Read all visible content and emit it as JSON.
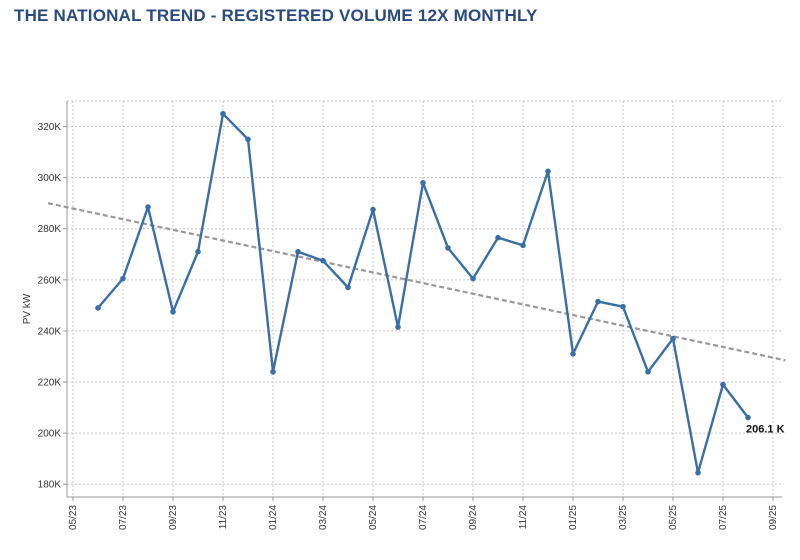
{
  "header": {
    "title": "THE NATIONAL TREND - REGISTERED VOLUME 12X MONTHLY"
  },
  "colors": {
    "series": "#3a6fa5",
    "trend": "#999999",
    "grid": "#c8c8c8",
    "title": "#2b4a7e"
  },
  "chart_data": {
    "type": "line",
    "title": "THE NATIONAL TREND - REGISTERED VOLUME 12X MONTHLY",
    "xlabel": "",
    "ylabel": "PV kW",
    "ylim": [
      175000,
      330000
    ],
    "xlim": [
      0,
      28
    ],
    "grid": true,
    "x_ticks": [
      {
        "x": 0,
        "label": "05/23"
      },
      {
        "x": 2,
        "label": "07/23"
      },
      {
        "x": 4,
        "label": "09/23"
      },
      {
        "x": 6,
        "label": "11/23"
      },
      {
        "x": 8,
        "label": "01/24"
      },
      {
        "x": 10,
        "label": "03/24"
      },
      {
        "x": 12,
        "label": "05/24"
      },
      {
        "x": 14,
        "label": "07/24"
      },
      {
        "x": 16,
        "label": "09/24"
      },
      {
        "x": 18,
        "label": "11/24"
      },
      {
        "x": 20,
        "label": "01/25"
      },
      {
        "x": 22,
        "label": "03/25"
      },
      {
        "x": 24,
        "label": "05/25"
      },
      {
        "x": 26,
        "label": "07/25"
      },
      {
        "x": 28,
        "label": "09/25"
      }
    ],
    "y_ticks": [
      {
        "y": 180000,
        "label": "180K"
      },
      {
        "y": 200000,
        "label": "200K"
      },
      {
        "y": 220000,
        "label": "220K"
      },
      {
        "y": 240000,
        "label": "240K"
      },
      {
        "y": 260000,
        "label": "260K"
      },
      {
        "y": 280000,
        "label": "280K"
      },
      {
        "y": 300000,
        "label": "300K"
      },
      {
        "y": 320000,
        "label": "320K"
      }
    ],
    "series": [
      {
        "name": "PV kW",
        "x": [
          1,
          2,
          3,
          4,
          5,
          6,
          7,
          8,
          9,
          10,
          11,
          12,
          13,
          14,
          15,
          16,
          17,
          18,
          19,
          20,
          21,
          22,
          23,
          24,
          25,
          26,
          27
        ],
        "values": [
          249000,
          260500,
          288500,
          247500,
          271000,
          325000,
          315000,
          224000,
          271000,
          267500,
          257000,
          287500,
          241500,
          298000,
          272500,
          260500,
          276500,
          273500,
          302500,
          231000,
          251500,
          249500,
          224000,
          237000,
          184500,
          219000,
          206100
        ]
      }
    ],
    "trendline": {
      "name": "Trend",
      "x": [
        -1,
        28.5
      ],
      "values": [
        290000,
        228500
      ]
    },
    "annotations": [
      {
        "text": "206.1 K",
        "x": 27,
        "y": 206100
      }
    ]
  }
}
